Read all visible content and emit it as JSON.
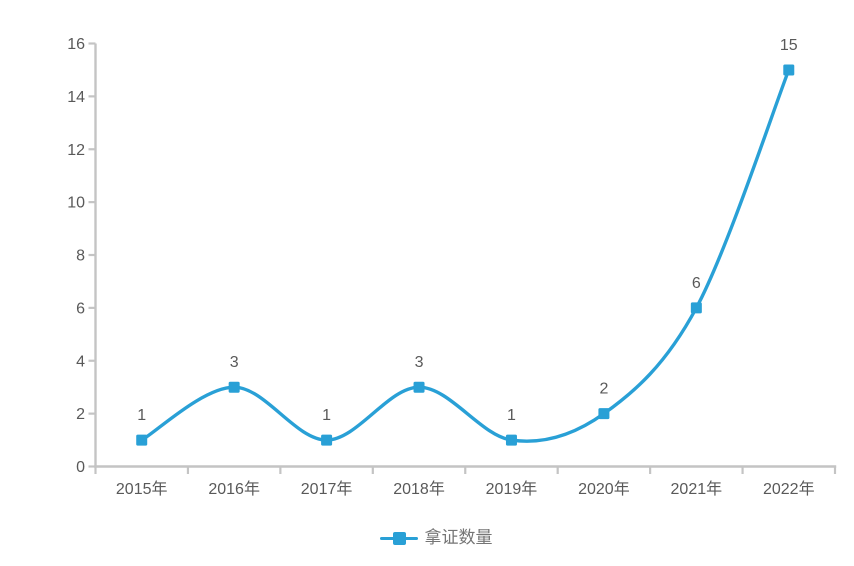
{
  "chart_data": {
    "type": "line",
    "smooth": true,
    "title": "",
    "categories": [
      "2015年",
      "2016年",
      "2017年",
      "2018年",
      "2019年",
      "2020年",
      "2021年",
      "2022年"
    ],
    "series": [
      {
        "name": "拿证数量",
        "values": [
          1,
          3,
          1,
          3,
          1,
          2,
          6,
          15
        ]
      }
    ],
    "data_labels": true,
    "xlabel": "",
    "ylabel": "",
    "ylim": [
      0,
      16
    ],
    "y_tick_step": 2,
    "y_ticks": [
      0,
      2,
      4,
      6,
      8,
      10,
      12,
      14,
      16
    ],
    "grid": false,
    "legend_position": "bottom",
    "marker_shape": "square"
  },
  "legend": {
    "label": "拿证数量"
  },
  "colors": {
    "series_line": "#29a0d6",
    "marker_fill": "#29a0d6",
    "axis_line": "#c4c4c4",
    "axis_text": "#595959",
    "data_label_text": "#595959",
    "legend_text": "#757575",
    "background": "#ffffff"
  }
}
